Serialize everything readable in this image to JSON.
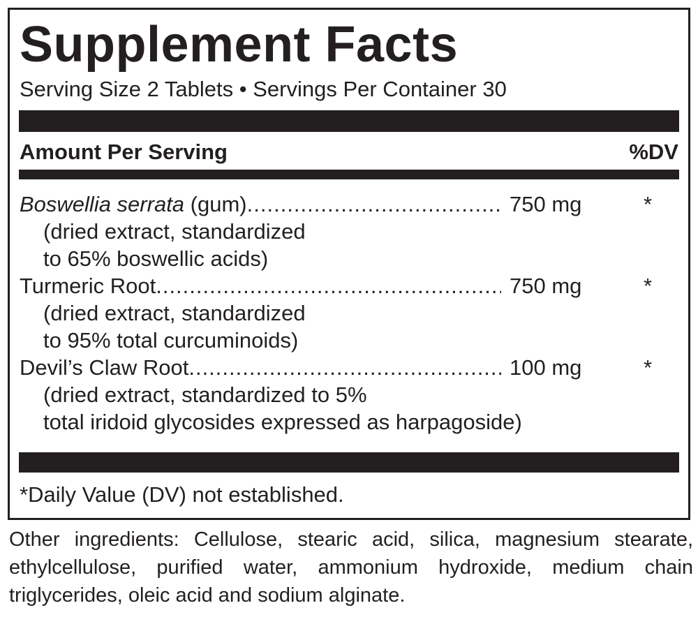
{
  "title": "Supplement Facts",
  "serving_line": "Serving Size 2 Tablets • Servings Per Container 30",
  "header": {
    "amount_label": "Amount Per Serving",
    "dv_label": "%DV"
  },
  "ingredients": [
    {
      "name_italic": "Boswellia serrata",
      "name_rest": " (gum)",
      "amount": "750 mg",
      "dv": "*",
      "details": [
        "(dried extract, standardized",
        "to 65% boswellic acids)"
      ]
    },
    {
      "name_italic": "",
      "name_rest": "Turmeric Root",
      "amount": "750 mg",
      "dv": "*",
      "details": [
        "(dried extract, standardized",
        "to 95% total curcuminoids)"
      ]
    },
    {
      "name_italic": "",
      "name_rest": "Devil’s Claw Root ",
      "amount": "100 mg",
      "dv": "*",
      "details": [
        "(dried extract, standardized to 5%",
        "total iridoid glycosides expressed as harpagoside)"
      ]
    }
  ],
  "footnote": "*Daily Value (DV) not established.",
  "other_ingredients": "Other ingredients: Cellulose, stearic acid, silica, magnesium stearate, ethylcellulose, purified water, ammonium hydroxide, medium chain triglycerides, oleic acid and sodium alginate."
}
